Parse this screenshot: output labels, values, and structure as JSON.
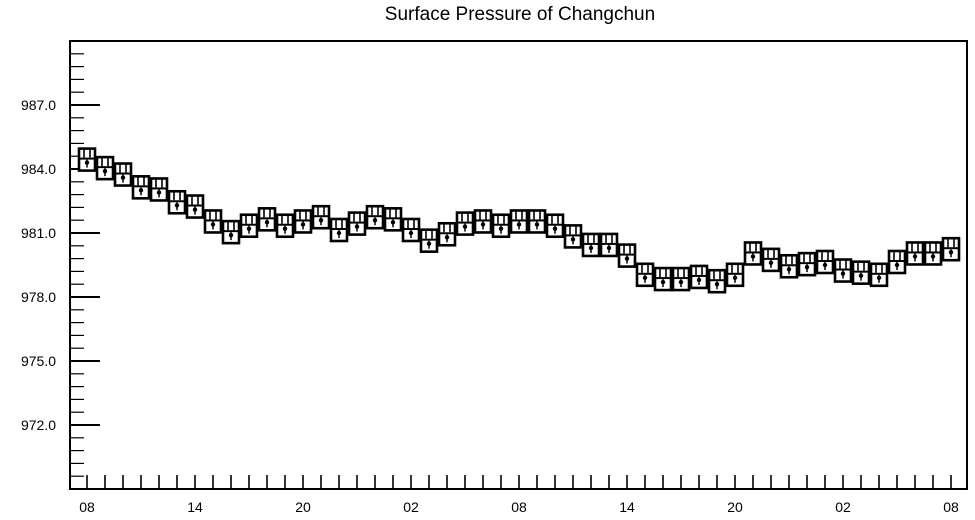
{
  "chart_data": {
    "type": "scatter",
    "title": "Surface Pressure of Changchun",
    "xlabel": "",
    "ylabel": "",
    "ylim": [
      969.0,
      990.0
    ],
    "y_major_ticks": [
      972.0,
      975.0,
      978.0,
      981.0,
      984.0,
      987.0
    ],
    "y_tick_labels": [
      "972.0",
      "975.0",
      "978.0",
      "981.0",
      "984.0",
      "987.0"
    ],
    "y_minor_step": 0.6,
    "x_tick_labels": [
      "08",
      "14",
      "20",
      "02",
      "08",
      "14",
      "20",
      "02",
      "08"
    ],
    "x_hours_per_label": 6,
    "marker": "boxed-symbol",
    "grid": false,
    "values": [
      984.3,
      983.9,
      983.6,
      983.0,
      982.9,
      982.3,
      982.1,
      981.4,
      980.9,
      981.2,
      981.5,
      981.2,
      981.4,
      981.6,
      981.0,
      981.3,
      981.6,
      981.5,
      981.0,
      980.5,
      980.8,
      981.3,
      981.4,
      981.2,
      981.4,
      981.4,
      981.2,
      980.7,
      980.3,
      980.3,
      979.8,
      978.9,
      978.7,
      978.7,
      978.8,
      978.6,
      978.9,
      979.9,
      979.6,
      979.3,
      979.4,
      979.5,
      979.1,
      979.0,
      978.9,
      979.5,
      979.9,
      979.9,
      980.1
    ]
  }
}
